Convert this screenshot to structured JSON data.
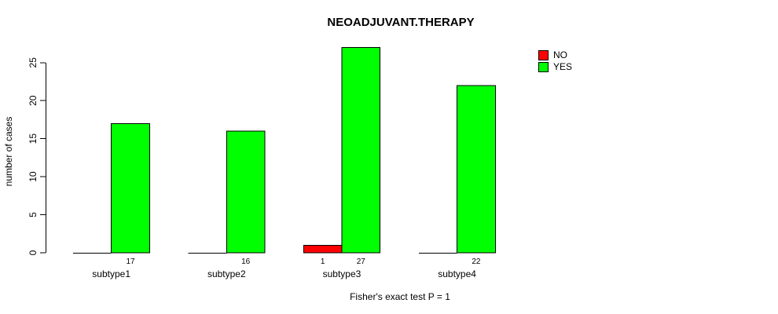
{
  "title": "NEOADJUVANT.THERAPY",
  "axes": {
    "ylabel": "number of cases",
    "xlabel": "Fisher's exact test P = 1"
  },
  "legend": {
    "items": [
      {
        "label": "NO",
        "color": "#FF0000"
      },
      {
        "label": "YES",
        "color": "#00FF00"
      }
    ]
  },
  "colors": {
    "no": "#FF0000",
    "yes": "#00FF00",
    "edge": "#000000",
    "text": "#000000",
    "background": "#FFFFFF"
  },
  "chart_data": {
    "type": "bar",
    "title": "NEOADJUVANT.THERAPY",
    "xlabel": "Fisher's exact test P = 1",
    "ylabel": "number of cases",
    "categories": [
      "subtype1",
      "subtype2",
      "subtype3",
      "subtype4"
    ],
    "series": [
      {
        "name": "NO",
        "color": "#FF0000",
        "values": [
          0,
          0,
          1,
          0
        ]
      },
      {
        "name": "YES",
        "color": "#00FF00",
        "values": [
          17,
          16,
          27,
          22
        ]
      }
    ],
    "bar_value_labels_shown": [
      [
        null,
        null,
        1,
        null
      ],
      [
        17,
        16,
        27,
        22
      ]
    ],
    "yticks": [
      0,
      5,
      10,
      15,
      20,
      25
    ],
    "ylim": [
      0,
      27
    ],
    "grid": false,
    "legend_position": "top-right",
    "legend_entries": [
      "NO",
      "YES"
    ]
  }
}
